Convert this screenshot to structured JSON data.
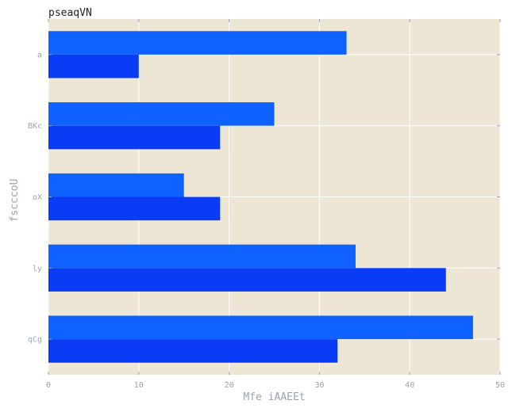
{
  "chart_data": {
    "type": "bar",
    "orientation": "horizontal",
    "title": "pseaqVN",
    "xlabel": "Mfe iAAEEt",
    "ylabel": "fscccoU",
    "categories": [
      "a",
      "BKc",
      "oX",
      "ly",
      "qCg"
    ],
    "series": [
      {
        "values": [
          33,
          25,
          15,
          34,
          47
        ],
        "color": "#0f62ff"
      },
      {
        "values": [
          10,
          19,
          19,
          44,
          32
        ],
        "color": "#0a3cf5"
      }
    ],
    "xlim": [
      0,
      50
    ],
    "xticks": [
      "0",
      "10",
      "20",
      "30",
      "40",
      "50"
    ],
    "grid": true,
    "background": "#ede6d4",
    "grid_color": "#ffffff",
    "legend": false
  }
}
